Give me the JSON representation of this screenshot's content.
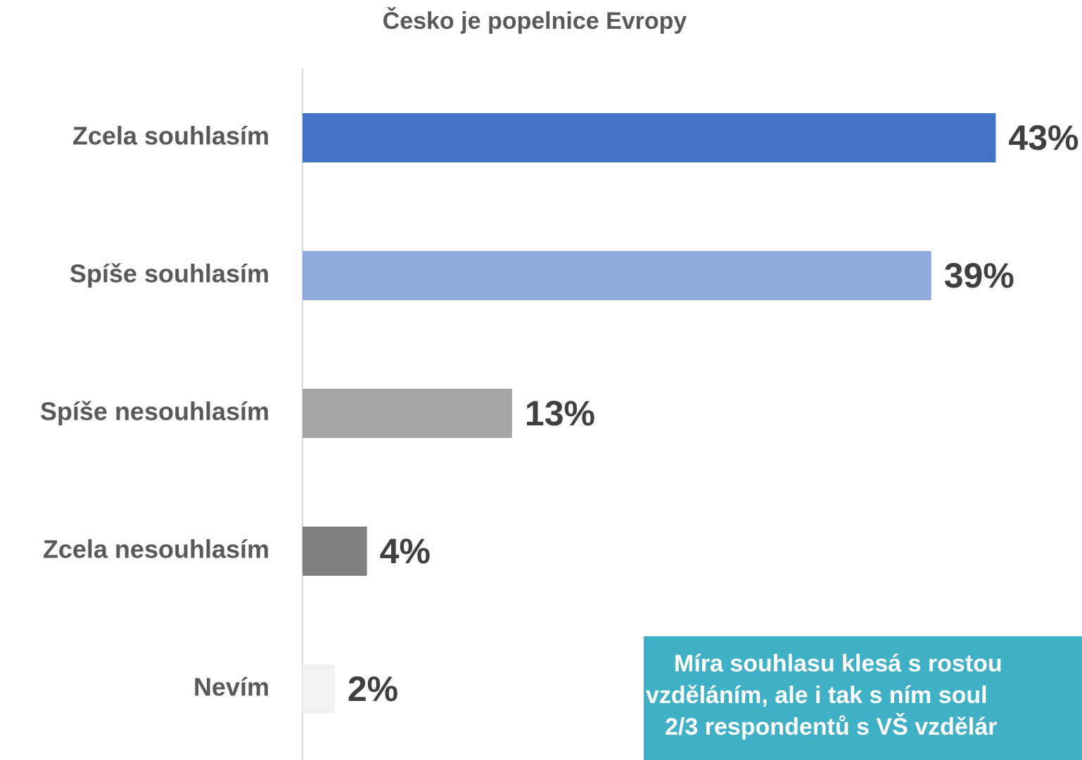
{
  "chart_data": {
    "type": "hbar",
    "title": "Česko je popelnice Evropy",
    "categories": [
      "Zcela souhlasím",
      "Spíše souhlasím",
      "Spíše nesouhlasím",
      "Zcela nesouhlasím",
      "Nevím"
    ],
    "values": [
      43,
      39,
      13,
      4,
      2
    ],
    "value_labels": [
      "43%",
      "39%",
      "13%",
      "4%",
      "2%"
    ],
    "colors": [
      "#4472c4",
      "#8faadc",
      "#a6a6a6",
      "#7f7f7f",
      "#f2f2f2"
    ],
    "xlim": [
      0,
      48
    ],
    "annotation": {
      "lines": [
        "Míra souhlasu klesá s rostou",
        "vzděláním, ale i tak s ním soul",
        "2/3 respondentů s VŠ vzdělár"
      ],
      "color": "#3fb0c6"
    }
  }
}
